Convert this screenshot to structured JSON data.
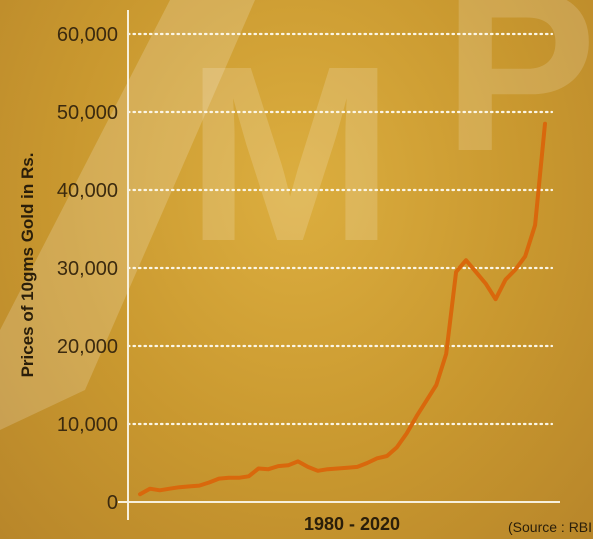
{
  "watermark_letters": [
    "M",
    "P"
  ],
  "source_note": "(Source : RBI",
  "chart_data": {
    "type": "line",
    "ylabel": "Prices of 10gms Gold in Rs.",
    "xlabel": "1980 - 2020",
    "x_range": [
      1979,
      2020
    ],
    "ylim": [
      0,
      60000
    ],
    "yticks": [
      0,
      10000,
      20000,
      30000,
      40000,
      50000,
      60000
    ],
    "ytick_labels": [
      "0",
      "10,000",
      "20,000",
      "30,000",
      "40,000",
      "50,000",
      "60,000"
    ],
    "grid": "horizontal dotted",
    "line_color": "#d9680c",
    "x": [
      1979,
      1980,
      1981,
      1982,
      1983,
      1984,
      1985,
      1986,
      1987,
      1988,
      1989,
      1990,
      1991,
      1992,
      1993,
      1994,
      1995,
      1996,
      1997,
      1998,
      1999,
      2000,
      2001,
      2002,
      2003,
      2004,
      2005,
      2006,
      2007,
      2008,
      2009,
      2010,
      2011,
      2012,
      2013,
      2014,
      2015,
      2016,
      2017,
      2018,
      2019,
      2020
    ],
    "values": [
      1000,
      1700,
      1500,
      1700,
      1900,
      2000,
      2100,
      2500,
      3000,
      3100,
      3100,
      3300,
      4300,
      4200,
      4600,
      4700,
      5200,
      4500,
      4000,
      4200,
      4300,
      4400,
      4500,
      5000,
      5600,
      5900,
      7000,
      8800,
      11000,
      13000,
      15000,
      19000,
      29500,
      31000,
      29500,
      28000,
      26000,
      28500,
      29800,
      31500,
      35500,
      48500
    ]
  }
}
